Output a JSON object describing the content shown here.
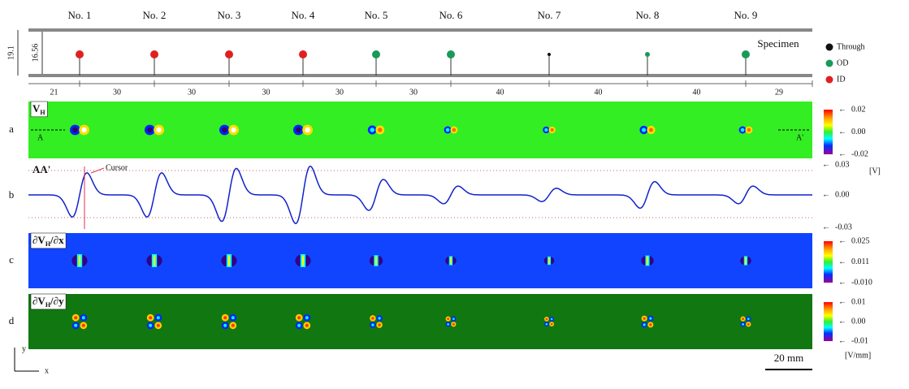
{
  "header": {
    "defects": [
      {
        "label": "No. 1",
        "type": "ID"
      },
      {
        "label": "No. 2",
        "type": "ID"
      },
      {
        "label": "No. 3",
        "type": "ID"
      },
      {
        "label": "No. 4",
        "type": "ID"
      },
      {
        "label": "No. 5",
        "type": "OD"
      },
      {
        "label": "No. 6",
        "type": "OD"
      },
      {
        "label": "No. 7",
        "type": "Through"
      },
      {
        "label": "No. 8",
        "type": "OD"
      },
      {
        "label": "No. 9",
        "type": "OD"
      }
    ]
  },
  "specimen": {
    "title": "Specimen",
    "thickness_outer": "19.1",
    "thickness_inner": "16.56",
    "spacings": [
      "21",
      "30",
      "30",
      "30",
      "30",
      "30",
      "40",
      "40",
      "40",
      "29"
    ],
    "legend": [
      {
        "name": "Through",
        "color": "#111111"
      },
      {
        "name": "OD",
        "color": "#1a9a5a"
      },
      {
        "name": "ID",
        "color": "#e02020"
      }
    ]
  },
  "panels": [
    {
      "letter": "a",
      "title": {
        "main": "V",
        "sub": "H",
        "rest": ""
      },
      "start": "A",
      "end": "A'",
      "scale": [
        "0.02",
        "0.00",
        "-0.02"
      ],
      "unit": "[V]"
    },
    {
      "letter": "b",
      "title": {
        "main": "AA'"
      },
      "cursor": "Cursor",
      "scale": [
        "0.03",
        "0.00",
        "-0.03"
      ]
    },
    {
      "letter": "c",
      "title": {
        "main": "∂V",
        "sub": "H",
        "rest": "/∂x"
      },
      "scale": [
        "0.025",
        "0.011",
        "-0.010"
      ]
    },
    {
      "letter": "d",
      "title": {
        "main": "∂V",
        "sub": "H",
        "rest": "/∂y"
      },
      "scale": [
        "0.01",
        "0.00",
        "-0.01"
      ],
      "unit": "[V/mm]"
    }
  ],
  "footer": {
    "scale_bar": "20 mm",
    "axis_x": "x",
    "axis_y": "y"
  }
}
